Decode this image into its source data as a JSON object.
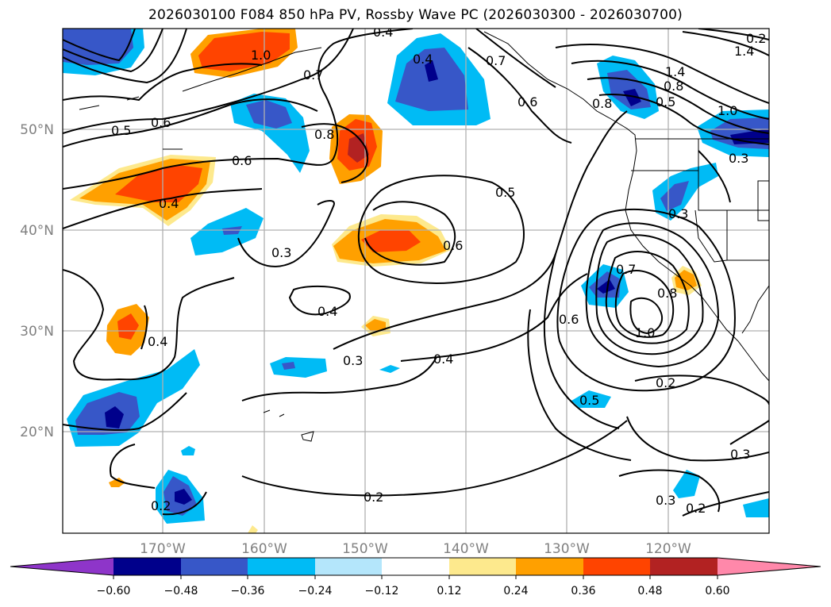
{
  "title": "2026030100 F084 850 hPa PV, Rossby Wave PC (2026030300 - 2026030700)",
  "lat_labels": [
    "50°N",
    "40°N",
    "30°N",
    "20°N"
  ],
  "lon_labels": [
    "170°W",
    "160°W",
    "150°W",
    "140°W",
    "130°W",
    "120°W"
  ],
  "colorbar": {
    "colors": [
      "#8e35c9",
      "#00008b",
      "#3757c8",
      "#00bbf5",
      "#b4e6fb",
      "#ffffff",
      "#fde98d",
      "#ffa000",
      "#ff4400",
      "#b22222",
      "#ff88aa"
    ],
    "ticks": [
      "−0.60",
      "−0.48",
      "−0.36",
      "−0.24",
      "−0.12",
      "0.12",
      "0.24",
      "0.36",
      "0.48",
      "0.60"
    ]
  },
  "contour_labels": [
    "1.0",
    "0.7",
    "0.4",
    "0.4",
    "0.5",
    "0.6",
    "0.8",
    "0.6",
    "0.4",
    "0.3",
    "0.4",
    "0.4",
    "0.3",
    "0.4",
    "0.6",
    "0.5",
    "0.6",
    "0.7",
    "0.6",
    "0.7",
    "0.8",
    "1.0",
    "0.2",
    "0.3",
    "0.3",
    "0.2",
    "0.2",
    "0.3",
    "0.2",
    "0.5",
    "1.4",
    "1.4",
    "0.8",
    "0.5",
    "1.0",
    "0.3",
    "0.2",
    "0.8"
  ]
}
